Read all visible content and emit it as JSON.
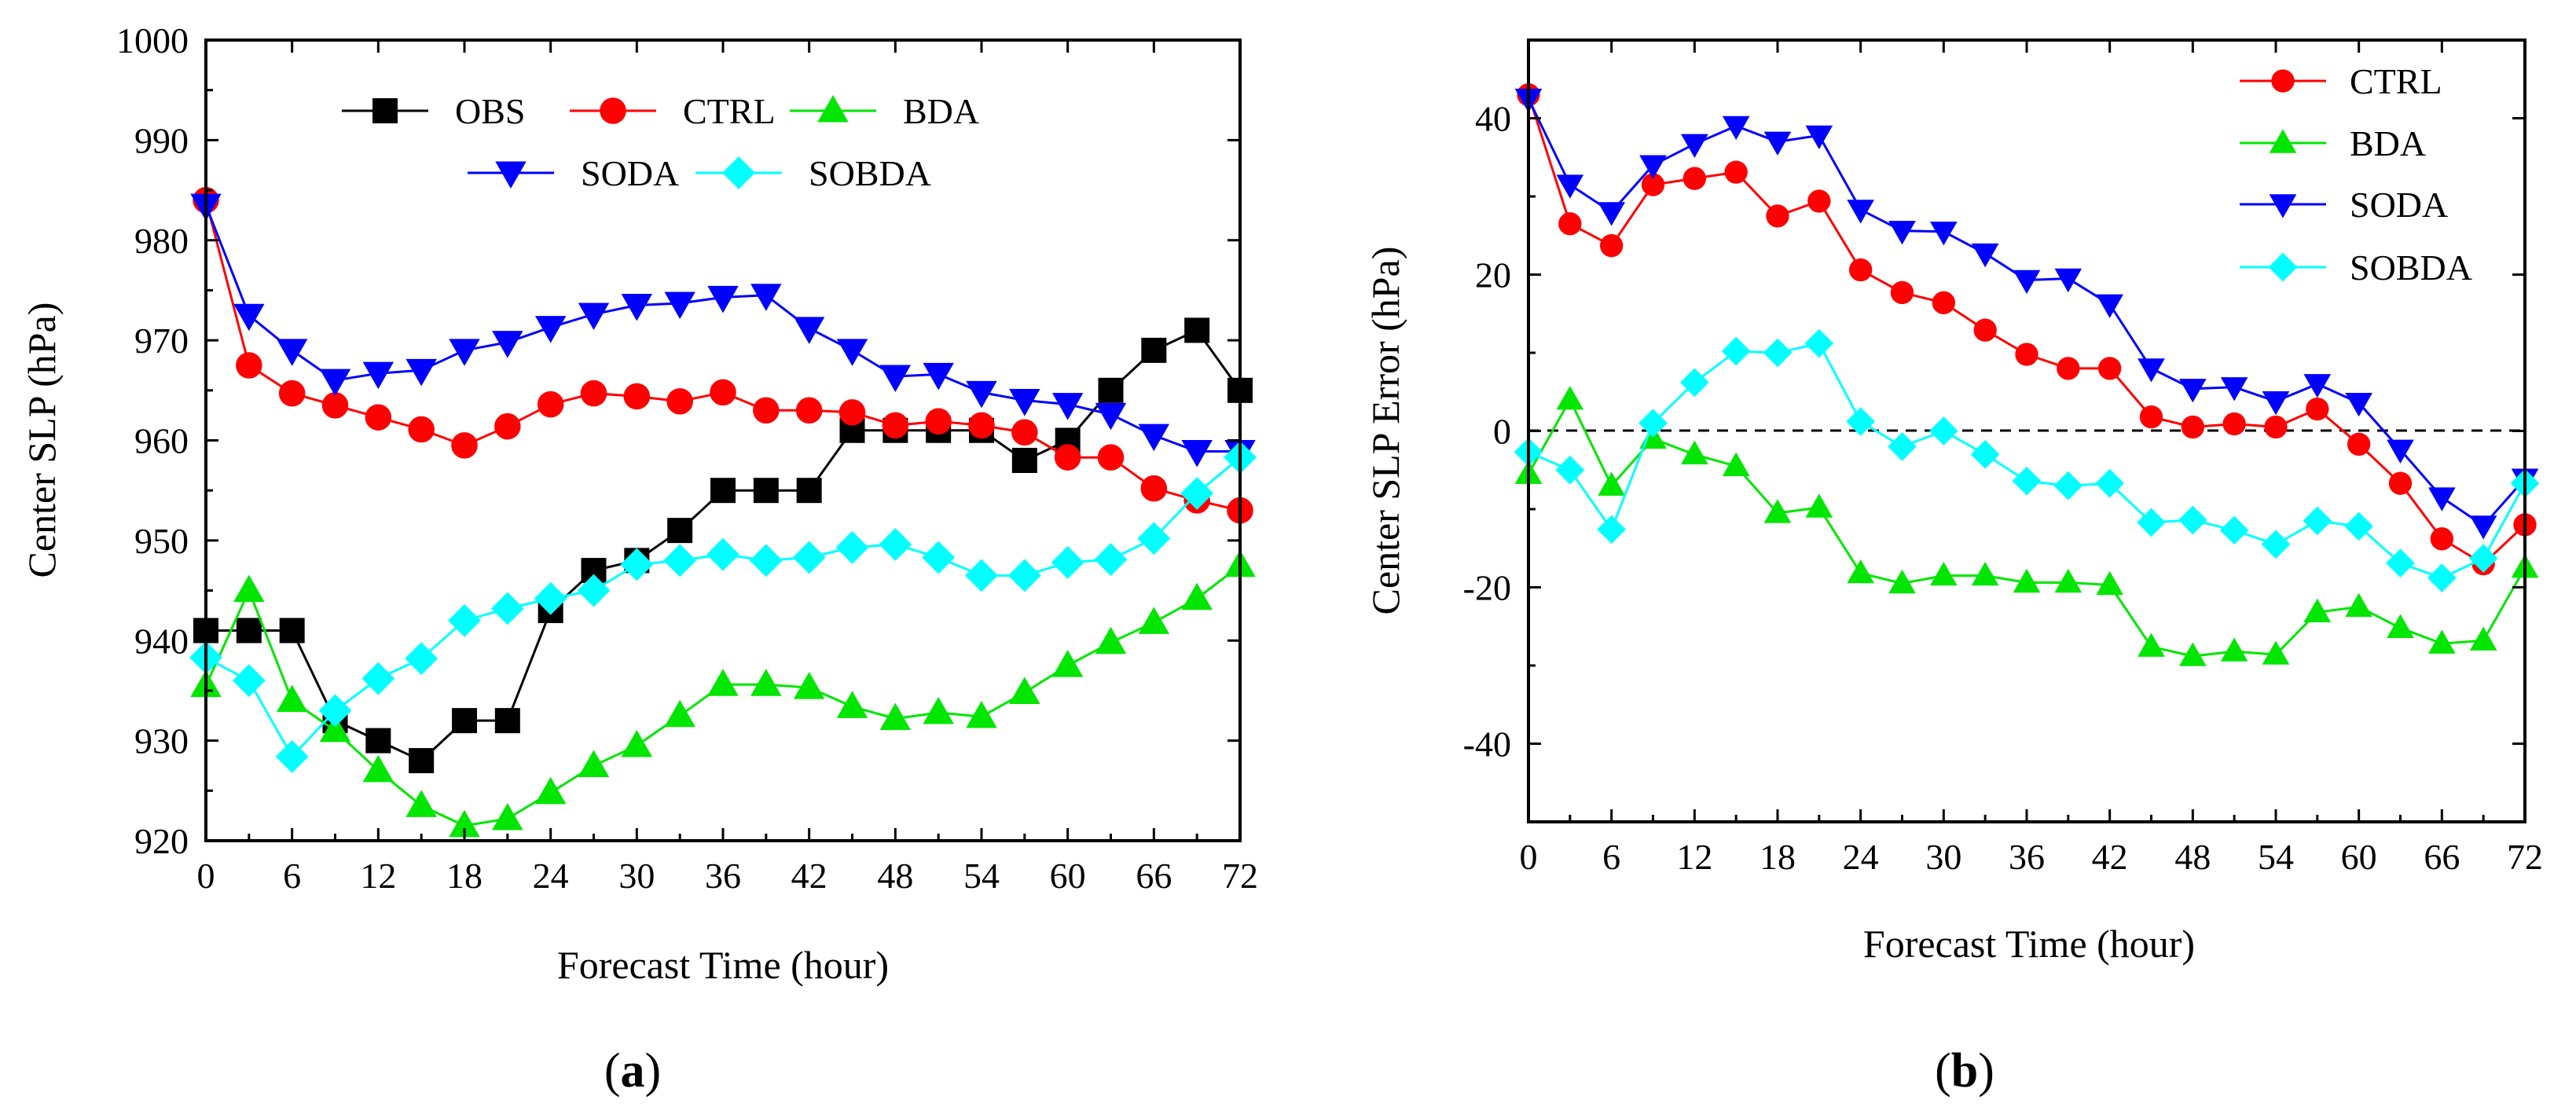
{
  "series_styles": {
    "OBS": {
      "color": "#000000",
      "marker": "square"
    },
    "CTRL": {
      "color": "#ff0000",
      "marker": "circle"
    },
    "BDA": {
      "color": "#00e600",
      "marker": "triangle-up"
    },
    "SODA": {
      "color": "#0000ff",
      "marker": "triangle-down"
    },
    "SOBDA": {
      "color": "#00ffff",
      "marker": "diamond"
    }
  },
  "chart_data": [
    {
      "type": "line",
      "panel_label": "a",
      "title": "",
      "xlabel": "Forecast Time (hour)",
      "ylabel": "Center SLP (hPa)",
      "xlim": [
        0,
        72
      ],
      "ylim": [
        920,
        1000
      ],
      "xticks": [
        0,
        6,
        12,
        18,
        24,
        30,
        36,
        42,
        48,
        54,
        60,
        66,
        72
      ],
      "yticks": [
        920,
        930,
        940,
        950,
        960,
        970,
        980,
        990,
        1000
      ],
      "grid": false,
      "legend_position": "top-center",
      "x": [
        0,
        3,
        6,
        9,
        12,
        15,
        18,
        21,
        24,
        27,
        30,
        33,
        36,
        39,
        42,
        45,
        48,
        51,
        54,
        57,
        60,
        63,
        66,
        69,
        72
      ],
      "series": [
        {
          "name": "OBS",
          "values": [
            941,
            941,
            941,
            932,
            930,
            928,
            932,
            932,
            943,
            947,
            948,
            951,
            955,
            955,
            955,
            961,
            961,
            961,
            961,
            958,
            960,
            965,
            969,
            971,
            965
          ]
        },
        {
          "name": "CTRL",
          "values": [
            984,
            967.5,
            964.7,
            963.5,
            962.3,
            961.1,
            959.5,
            961.4,
            963.6,
            964.7,
            964.4,
            963.9,
            964.8,
            963,
            963,
            962.8,
            961.5,
            961.9,
            961.5,
            960.8,
            958.3,
            958.3,
            955.2,
            954,
            953
          ]
        },
        {
          "name": "BDA",
          "values": [
            935.5,
            945,
            934,
            931,
            927,
            923.5,
            921.5,
            922.2,
            924.8,
            927.5,
            929.5,
            932.5,
            935.6,
            935.6,
            935.3,
            933.4,
            932.2,
            932.8,
            932.4,
            934.8,
            937.5,
            939.8,
            941.8,
            944.2,
            947.5
          ]
        },
        {
          "name": "SODA",
          "values": [
            983.5,
            972.5,
            969,
            966,
            966.7,
            967,
            969,
            969.8,
            971.3,
            972.6,
            973.5,
            973.7,
            974.3,
            974.5,
            971.2,
            969,
            966.4,
            966.6,
            964.8,
            964,
            963.6,
            962.6,
            960.5,
            958.9,
            958.9
          ]
        },
        {
          "name": "SOBDA",
          "values": [
            938.3,
            936,
            928.4,
            933,
            936.2,
            938.2,
            942,
            943.2,
            944.2,
            945,
            947.6,
            948,
            948.6,
            948,
            948.3,
            949.3,
            949.6,
            948.3,
            946.5,
            946.5,
            947.8,
            948.1,
            950.2,
            954.7,
            958.3
          ]
        }
      ],
      "legend": {
        "rows": [
          [
            "OBS",
            "CTRL",
            "BDA"
          ],
          [
            "SODA",
            "SOBDA"
          ]
        ]
      }
    },
    {
      "type": "line",
      "panel_label": "b",
      "title": "",
      "xlabel": "Forecast Time (hour)",
      "ylabel": "Center SLP Error (hPa)",
      "xlim": [
        0,
        72
      ],
      "ylim": [
        -50,
        50
      ],
      "xticks": [
        0,
        6,
        12,
        18,
        24,
        30,
        36,
        42,
        48,
        54,
        60,
        66,
        72
      ],
      "yticks": [
        -40,
        -20,
        0,
        20,
        40
      ],
      "grid": false,
      "reference_line": {
        "y": 0,
        "style": "dashed"
      },
      "legend_position": "top-right",
      "x": [
        0,
        3,
        6,
        9,
        12,
        15,
        18,
        21,
        24,
        27,
        30,
        33,
        36,
        39,
        42,
        45,
        48,
        51,
        54,
        57,
        60,
        63,
        66,
        69,
        72
      ],
      "series": [
        {
          "name": "CTRL",
          "values": [
            43,
            26.5,
            23.7,
            31.5,
            32.3,
            33.1,
            27.5,
            29.4,
            20.6,
            17.7,
            16.4,
            12.9,
            9.8,
            8,
            8,
            1.8,
            0.5,
            0.9,
            0.5,
            2.8,
            -1.7,
            -6.7,
            -13.8,
            -17,
            -12
          ]
        },
        {
          "name": "BDA",
          "values": [
            -5.5,
            4,
            -7,
            -1,
            -3,
            -4.5,
            -10.5,
            -9.8,
            -18.2,
            -19.5,
            -18.5,
            -18.5,
            -19.4,
            -19.4,
            -19.7,
            -27.6,
            -28.8,
            -28.2,
            -28.6,
            -23.2,
            -22.5,
            -25.2,
            -27.2,
            -26.8,
            -17.5
          ]
        },
        {
          "name": "SODA",
          "values": [
            42.5,
            31.5,
            28,
            34,
            36.7,
            39,
            37,
            37.8,
            28.3,
            25.6,
            25.5,
            22.7,
            19.3,
            19.5,
            16.2,
            8,
            5.4,
            5.6,
            3.8,
            6,
            3.6,
            -2.4,
            -8.5,
            -12.1,
            -6.1
          ]
        },
        {
          "name": "SOBDA",
          "values": [
            -2.7,
            -5,
            -12.6,
            1,
            6.2,
            10.2,
            10,
            11.2,
            1.2,
            -2,
            0,
            -3,
            -6.4,
            -7,
            -6.7,
            -11.7,
            -11.4,
            -12.7,
            -14.5,
            -11.5,
            -12.2,
            -16.9,
            -18.8,
            -16.3,
            -6.7
          ]
        }
      ],
      "legend": {
        "rows": [
          [
            "CTRL"
          ],
          [
            "BDA"
          ],
          [
            "SODA"
          ],
          [
            "SOBDA"
          ]
        ]
      }
    }
  ]
}
